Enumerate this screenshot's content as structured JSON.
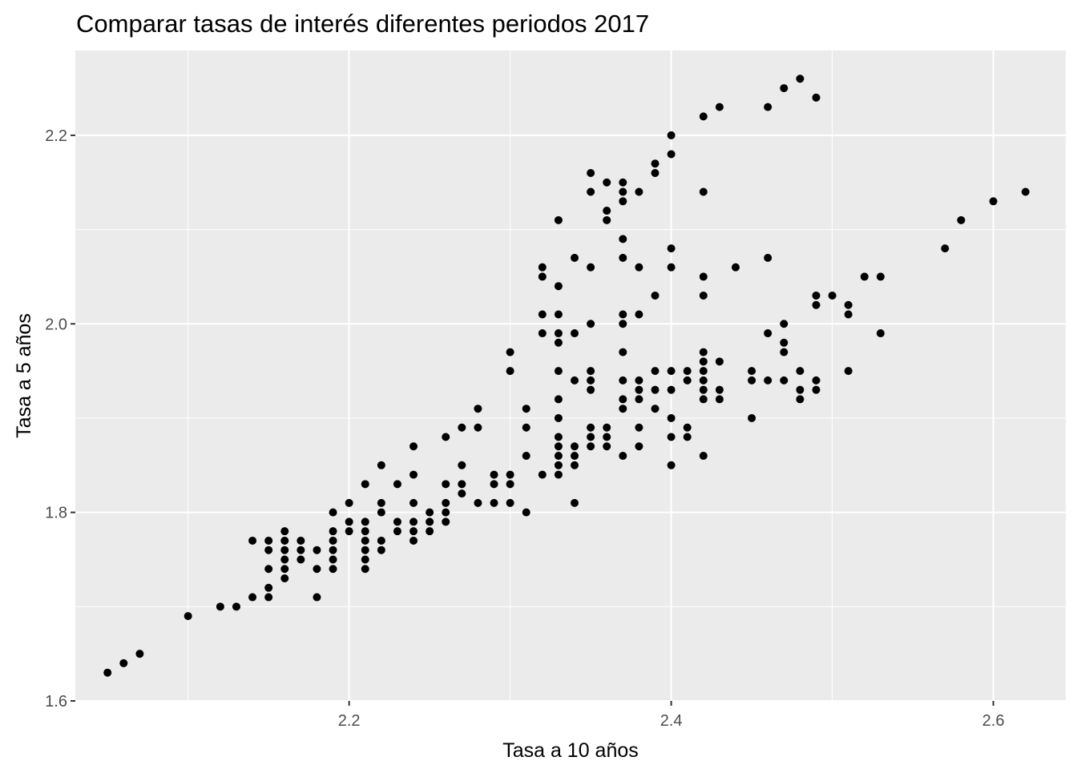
{
  "chart_data": {
    "type": "scatter",
    "title": "Comparar tasas de interés diferentes periodos 2017",
    "xlabel": "Tasa a 10 años",
    "ylabel": "Tasa a 5 años",
    "xlim": [
      2.03,
      2.645
    ],
    "ylim": [
      1.6,
      2.29
    ],
    "x_ticks": [
      "2.2",
      "2.4",
      "2.6"
    ],
    "y_ticks": [
      "1.6",
      "1.8",
      "2.0",
      "2.2"
    ],
    "grid": true,
    "colors": {
      "panel": "#ebebeb",
      "grid": "#ffffff",
      "point": "#000000",
      "tick_text": "#4d4d4d"
    },
    "points": [
      [
        2.05,
        1.63
      ],
      [
        2.06,
        1.64
      ],
      [
        2.07,
        1.65
      ],
      [
        2.1,
        1.69
      ],
      [
        2.12,
        1.7
      ],
      [
        2.13,
        1.7
      ],
      [
        2.14,
        1.71
      ],
      [
        2.14,
        1.77
      ],
      [
        2.15,
        1.71
      ],
      [
        2.15,
        1.72
      ],
      [
        2.15,
        1.74
      ],
      [
        2.15,
        1.76
      ],
      [
        2.15,
        1.77
      ],
      [
        2.16,
        1.73
      ],
      [
        2.16,
        1.74
      ],
      [
        2.16,
        1.75
      ],
      [
        2.16,
        1.76
      ],
      [
        2.16,
        1.77
      ],
      [
        2.16,
        1.78
      ],
      [
        2.17,
        1.75
      ],
      [
        2.17,
        1.76
      ],
      [
        2.17,
        1.77
      ],
      [
        2.18,
        1.71
      ],
      [
        2.18,
        1.74
      ],
      [
        2.18,
        1.76
      ],
      [
        2.19,
        1.74
      ],
      [
        2.19,
        1.75
      ],
      [
        2.19,
        1.76
      ],
      [
        2.19,
        1.77
      ],
      [
        2.19,
        1.78
      ],
      [
        2.19,
        1.8
      ],
      [
        2.2,
        1.78
      ],
      [
        2.2,
        1.79
      ],
      [
        2.2,
        1.81
      ],
      [
        2.21,
        1.74
      ],
      [
        2.21,
        1.75
      ],
      [
        2.21,
        1.76
      ],
      [
        2.21,
        1.77
      ],
      [
        2.21,
        1.78
      ],
      [
        2.21,
        1.79
      ],
      [
        2.21,
        1.83
      ],
      [
        2.22,
        1.76
      ],
      [
        2.22,
        1.77
      ],
      [
        2.22,
        1.8
      ],
      [
        2.22,
        1.81
      ],
      [
        2.22,
        1.85
      ],
      [
        2.23,
        1.78
      ],
      [
        2.23,
        1.79
      ],
      [
        2.23,
        1.83
      ],
      [
        2.24,
        1.77
      ],
      [
        2.24,
        1.78
      ],
      [
        2.24,
        1.79
      ],
      [
        2.24,
        1.81
      ],
      [
        2.24,
        1.84
      ],
      [
        2.24,
        1.87
      ],
      [
        2.25,
        1.78
      ],
      [
        2.25,
        1.79
      ],
      [
        2.25,
        1.8
      ],
      [
        2.26,
        1.79
      ],
      [
        2.26,
        1.8
      ],
      [
        2.26,
        1.81
      ],
      [
        2.26,
        1.83
      ],
      [
        2.26,
        1.88
      ],
      [
        2.27,
        1.82
      ],
      [
        2.27,
        1.83
      ],
      [
        2.27,
        1.85
      ],
      [
        2.27,
        1.89
      ],
      [
        2.28,
        1.81
      ],
      [
        2.28,
        1.89
      ],
      [
        2.28,
        1.91
      ],
      [
        2.29,
        1.81
      ],
      [
        2.29,
        1.83
      ],
      [
        2.29,
        1.84
      ],
      [
        2.3,
        1.81
      ],
      [
        2.3,
        1.83
      ],
      [
        2.3,
        1.84
      ],
      [
        2.3,
        1.95
      ],
      [
        2.3,
        1.97
      ],
      [
        2.31,
        1.8
      ],
      [
        2.31,
        1.86
      ],
      [
        2.31,
        1.89
      ],
      [
        2.31,
        1.91
      ],
      [
        2.32,
        1.84
      ],
      [
        2.32,
        1.99
      ],
      [
        2.32,
        2.01
      ],
      [
        2.32,
        2.05
      ],
      [
        2.32,
        2.06
      ],
      [
        2.33,
        1.84
      ],
      [
        2.33,
        1.85
      ],
      [
        2.33,
        1.86
      ],
      [
        2.33,
        1.87
      ],
      [
        2.33,
        1.88
      ],
      [
        2.33,
        1.9
      ],
      [
        2.33,
        1.92
      ],
      [
        2.33,
        1.95
      ],
      [
        2.33,
        1.98
      ],
      [
        2.33,
        1.99
      ],
      [
        2.33,
        2.01
      ],
      [
        2.33,
        2.04
      ],
      [
        2.33,
        2.11
      ],
      [
        2.34,
        1.81
      ],
      [
        2.34,
        1.85
      ],
      [
        2.34,
        1.86
      ],
      [
        2.34,
        1.87
      ],
      [
        2.34,
        1.94
      ],
      [
        2.34,
        1.99
      ],
      [
        2.34,
        2.07
      ],
      [
        2.35,
        1.87
      ],
      [
        2.35,
        1.88
      ],
      [
        2.35,
        1.89
      ],
      [
        2.35,
        1.93
      ],
      [
        2.35,
        1.94
      ],
      [
        2.35,
        1.95
      ],
      [
        2.35,
        2.0
      ],
      [
        2.35,
        2.06
      ],
      [
        2.35,
        2.14
      ],
      [
        2.35,
        2.16
      ],
      [
        2.36,
        1.87
      ],
      [
        2.36,
        1.88
      ],
      [
        2.36,
        1.89
      ],
      [
        2.36,
        2.11
      ],
      [
        2.36,
        2.12
      ],
      [
        2.36,
        2.15
      ],
      [
        2.37,
        1.86
      ],
      [
        2.37,
        1.91
      ],
      [
        2.37,
        1.92
      ],
      [
        2.37,
        1.94
      ],
      [
        2.37,
        1.97
      ],
      [
        2.37,
        2.0
      ],
      [
        2.37,
        2.01
      ],
      [
        2.37,
        2.07
      ],
      [
        2.37,
        2.09
      ],
      [
        2.37,
        2.13
      ],
      [
        2.37,
        2.14
      ],
      [
        2.37,
        2.15
      ],
      [
        2.38,
        1.87
      ],
      [
        2.38,
        1.89
      ],
      [
        2.38,
        1.92
      ],
      [
        2.38,
        1.93
      ],
      [
        2.38,
        1.94
      ],
      [
        2.38,
        2.01
      ],
      [
        2.38,
        2.06
      ],
      [
        2.38,
        2.14
      ],
      [
        2.39,
        1.91
      ],
      [
        2.39,
        1.93
      ],
      [
        2.39,
        1.95
      ],
      [
        2.39,
        2.03
      ],
      [
        2.39,
        2.16
      ],
      [
        2.39,
        2.17
      ],
      [
        2.4,
        1.85
      ],
      [
        2.4,
        1.88
      ],
      [
        2.4,
        1.9
      ],
      [
        2.4,
        1.93
      ],
      [
        2.4,
        1.95
      ],
      [
        2.4,
        2.06
      ],
      [
        2.4,
        2.08
      ],
      [
        2.4,
        2.18
      ],
      [
        2.4,
        2.2
      ],
      [
        2.41,
        1.88
      ],
      [
        2.41,
        1.89
      ],
      [
        2.41,
        1.94
      ],
      [
        2.41,
        1.95
      ],
      [
        2.42,
        1.86
      ],
      [
        2.42,
        1.92
      ],
      [
        2.42,
        1.93
      ],
      [
        2.42,
        1.94
      ],
      [
        2.42,
        1.95
      ],
      [
        2.42,
        1.96
      ],
      [
        2.42,
        1.97
      ],
      [
        2.42,
        2.03
      ],
      [
        2.42,
        2.05
      ],
      [
        2.42,
        2.14
      ],
      [
        2.42,
        2.22
      ],
      [
        2.43,
        1.92
      ],
      [
        2.43,
        1.93
      ],
      [
        2.43,
        1.96
      ],
      [
        2.43,
        2.23
      ],
      [
        2.44,
        2.06
      ],
      [
        2.45,
        1.9
      ],
      [
        2.45,
        1.94
      ],
      [
        2.45,
        1.95
      ],
      [
        2.46,
        1.94
      ],
      [
        2.46,
        1.99
      ],
      [
        2.46,
        2.07
      ],
      [
        2.46,
        2.23
      ],
      [
        2.47,
        1.94
      ],
      [
        2.47,
        1.97
      ],
      [
        2.47,
        1.98
      ],
      [
        2.47,
        2.0
      ],
      [
        2.47,
        2.25
      ],
      [
        2.48,
        1.92
      ],
      [
        2.48,
        1.93
      ],
      [
        2.48,
        1.95
      ],
      [
        2.48,
        2.26
      ],
      [
        2.49,
        1.93
      ],
      [
        2.49,
        1.94
      ],
      [
        2.49,
        2.02
      ],
      [
        2.49,
        2.03
      ],
      [
        2.49,
        2.24
      ],
      [
        2.5,
        2.03
      ],
      [
        2.51,
        1.95
      ],
      [
        2.51,
        2.01
      ],
      [
        2.51,
        2.02
      ],
      [
        2.52,
        2.05
      ],
      [
        2.53,
        1.99
      ],
      [
        2.53,
        2.05
      ],
      [
        2.57,
        2.08
      ],
      [
        2.58,
        2.11
      ],
      [
        2.6,
        2.13
      ],
      [
        2.62,
        2.14
      ]
    ]
  }
}
